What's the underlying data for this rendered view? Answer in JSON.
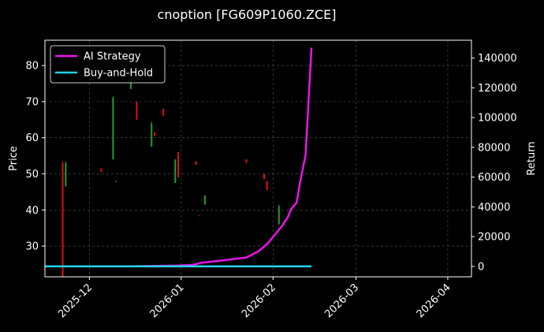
{
  "chart_data": {
    "type": "line",
    "title": "cnoption [FG609P1060.ZCE]",
    "xlabel": "",
    "ylabel": "Price",
    "y2label": "Return",
    "x_tick_labels": [
      "2025-12",
      "2026-01",
      "2026-02",
      "2026-03",
      "2026-04"
    ],
    "x_ticks": [
      "2025-12-01",
      "2026-01-01",
      "2026-02-01",
      "2026-03-01",
      "2026-04-01"
    ],
    "xlim": [
      "2025-11-16",
      "2026-04-09"
    ],
    "ylim": [
      21.5,
      87
    ],
    "y_ticks": [
      30,
      40,
      50,
      60,
      70,
      80
    ],
    "y2lim": [
      -7000,
      152000
    ],
    "y2_ticks": [
      0,
      20000,
      40000,
      60000,
      80000,
      100000,
      120000,
      140000
    ],
    "grid": true,
    "legend_position": "top-left",
    "background": "#000000",
    "colors": {
      "up_candle": "#1f9e2f",
      "down_candle": "#e01010",
      "ai_strategy": "#e815e8",
      "buy_and_hold": "#22d3e6",
      "grid": "#555555"
    },
    "candles": [
      {
        "date": "2025-11-22",
        "open": 53,
        "close": 21.5,
        "high": 53.5,
        "low": 21.5
      },
      {
        "date": "2025-11-23",
        "open": 46.5,
        "close": 53,
        "high": 53.5,
        "low": 46.5
      },
      {
        "date": "2025-12-05",
        "open": 51.5,
        "close": 50.5,
        "high": 51.5,
        "low": 50.5
      },
      {
        "date": "2025-12-09",
        "open": 54,
        "close": 71,
        "high": 71.5,
        "low": 54
      },
      {
        "date": "2025-12-10",
        "open": 48,
        "close": 48,
        "high": 48.2,
        "low": 47.8
      },
      {
        "date": "2025-12-15",
        "open": 73.5,
        "close": 76,
        "high": 76,
        "low": 73.5
      },
      {
        "date": "2025-12-17",
        "open": 70,
        "close": 65,
        "high": 70,
        "low": 65
      },
      {
        "date": "2025-12-22",
        "open": 57.5,
        "close": 64,
        "high": 64.5,
        "low": 57.5
      },
      {
        "date": "2025-12-23",
        "open": 61.5,
        "close": 60.5,
        "high": 61.5,
        "low": 60.5
      },
      {
        "date": "2025-12-26",
        "open": 68,
        "close": 66,
        "high": 68,
        "low": 66
      },
      {
        "date": "2025-12-30",
        "open": 47.5,
        "close": 54,
        "high": 54,
        "low": 47.5
      },
      {
        "date": "2025-12-31",
        "open": 56,
        "close": 49,
        "high": 56,
        "low": 49
      },
      {
        "date": "2026-01-06",
        "open": 53.5,
        "close": 52.5,
        "high": 53.5,
        "low": 52.5
      },
      {
        "date": "2026-01-07",
        "open": 38.5,
        "close": 38.3,
        "high": 38.5,
        "low": 38.3
      },
      {
        "date": "2026-01-09",
        "open": 41.5,
        "close": 44,
        "high": 44,
        "low": 41.5
      },
      {
        "date": "2026-01-23",
        "open": 54,
        "close": 53,
        "high": 54,
        "low": 53
      },
      {
        "date": "2026-01-29",
        "open": 50,
        "close": 48.5,
        "high": 50,
        "low": 48.5
      },
      {
        "date": "2026-01-30",
        "open": 48,
        "close": 45.5,
        "high": 48,
        "low": 45.5
      },
      {
        "date": "2026-02-03",
        "open": 36,
        "close": 41,
        "high": 41.5,
        "low": 36
      }
    ],
    "series": [
      {
        "name": "AI Strategy",
        "axis": "right",
        "x": [
          "2025-11-16",
          "2025-12-15",
          "2025-12-31",
          "2026-01-05",
          "2026-01-08",
          "2026-01-15",
          "2026-01-23",
          "2026-01-27",
          "2026-01-30",
          "2026-02-04",
          "2026-02-06",
          "2026-02-07",
          "2026-02-09",
          "2026-02-10",
          "2026-02-12",
          "2026-02-14"
        ],
        "values": [
          0,
          0,
          500,
          1000,
          2500,
          4000,
          6000,
          10000,
          15000,
          27000,
          33000,
          38000,
          43000,
          55000,
          75000,
          147000
        ]
      },
      {
        "name": "Buy-and-Hold",
        "axis": "right",
        "x": [
          "2025-11-16",
          "2026-02-14"
        ],
        "values": [
          1,
          1
        ]
      }
    ]
  }
}
